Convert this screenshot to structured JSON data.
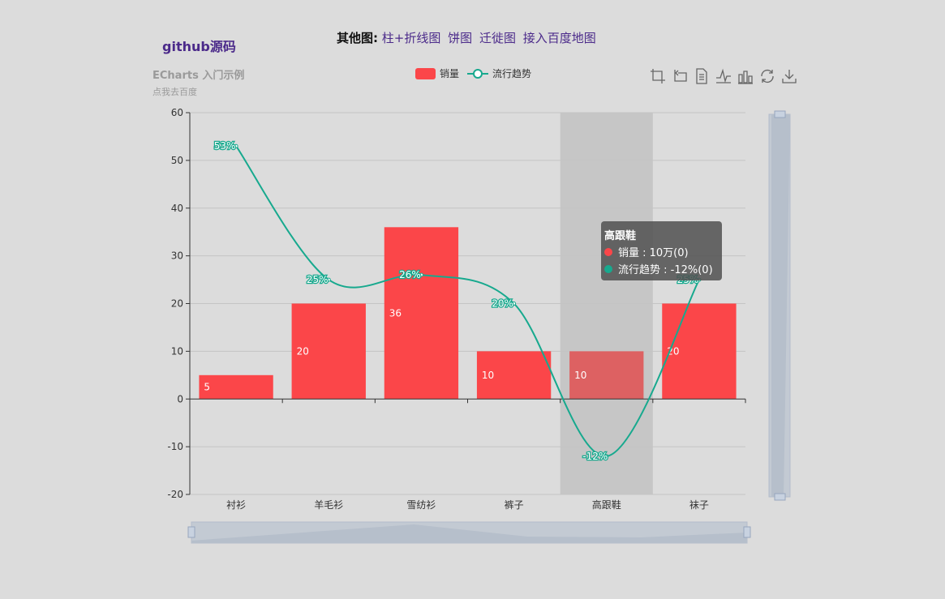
{
  "header": {
    "github_label": "github源码",
    "other_label": "其他图:",
    "links": [
      "柱+折线图",
      "饼图",
      "迁徙图",
      "接入百度地图"
    ]
  },
  "chart_title": "ECharts 入门示例",
  "chart_subtitle": "点我去百度",
  "legend": [
    {
      "name": "销量",
      "color": "#fb4649"
    },
    {
      "name": "流行趋势",
      "color": "#17a98e"
    }
  ],
  "toolbox": [
    "crop-icon",
    "undo-zoom-icon",
    "data-view-icon",
    "line-type-icon",
    "bar-type-icon",
    "restore-icon",
    "save-image-icon"
  ],
  "tooltip": {
    "title": "高跟鞋",
    "rows": [
      {
        "text": "销量 : 10万(0)",
        "color": "#fb4649"
      },
      {
        "text": "流行趋势 : -12%(0)",
        "color": "#17a98e"
      }
    ]
  },
  "chart_data": {
    "type": "bar",
    "categories": [
      "衬衫",
      "羊毛衫",
      "雪纺衫",
      "裤子",
      "高跟鞋",
      "袜子"
    ],
    "series": [
      {
        "name": "销量",
        "type": "bar",
        "values": [
          5,
          20,
          36,
          10,
          10,
          20
        ],
        "color": "#fb4649"
      },
      {
        "name": "流行趋势",
        "type": "line",
        "values": [
          53,
          25,
          26,
          20,
          -12,
          25
        ],
        "labels": [
          "53%",
          "25%",
          "26%",
          "20%",
          "-12%",
          "25%"
        ],
        "color": "#17a98e"
      }
    ],
    "ylim": [
      -20,
      60
    ],
    "yticks": [
      "60",
      "50",
      "40",
      "30",
      "20",
      "10",
      "0",
      "-10",
      "-20"
    ],
    "highlighted_category": "高跟鞋",
    "grid": true,
    "legend_position": "top-center",
    "datazoom": [
      "x-slider",
      "y-slider"
    ]
  }
}
